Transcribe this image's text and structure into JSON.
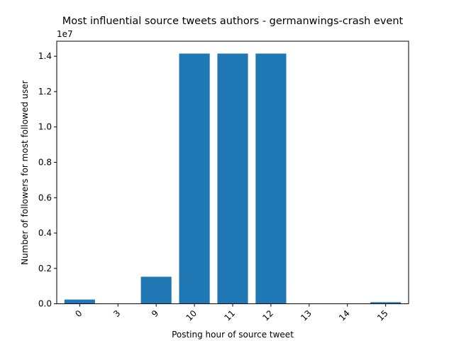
{
  "chart_data": {
    "type": "bar",
    "title": "Most influential source tweets authors - germanwings-crash event",
    "xlabel": "Posting hour of source tweet",
    "ylabel": "Number of followers for most followed user",
    "y_offset_text": "1e7",
    "y_scale": 10000000,
    "categories": [
      "0",
      "3",
      "9",
      "10",
      "11",
      "12",
      "13",
      "14",
      "15"
    ],
    "values": [
      240000,
      0,
      1530000,
      14150000,
      14150000,
      14150000,
      0,
      0,
      90000
    ],
    "ylim": [
      0,
      14850000
    ],
    "yticks": [
      0,
      2000000,
      4000000,
      6000000,
      8000000,
      10000000,
      12000000,
      14000000
    ],
    "ytick_labels": [
      "0.0",
      "0.2",
      "0.4",
      "0.6",
      "0.8",
      "1.0",
      "1.2",
      "1.4"
    ],
    "grid": false,
    "legend": "none",
    "bar_color": "#1f77b4"
  }
}
